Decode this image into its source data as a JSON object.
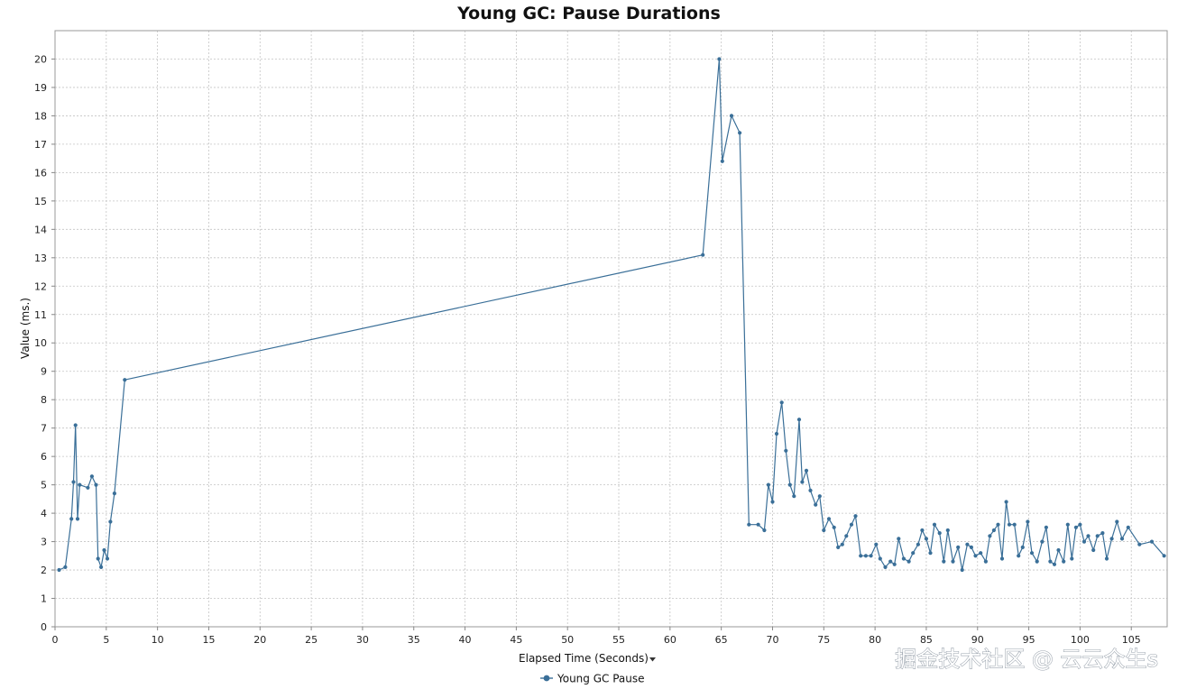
{
  "chart_data": {
    "type": "line",
    "title": "Young GC: Pause Durations",
    "xlabel": "Elapsed Time (Seconds)",
    "xlabel_dropdown_icon": "caret-down-icon",
    "ylabel": "Value (ms.)",
    "xlim": [
      0,
      108.5
    ],
    "ylim": [
      0,
      21
    ],
    "x_ticks": [
      0,
      5,
      10,
      15,
      20,
      25,
      30,
      35,
      40,
      45,
      50,
      55,
      60,
      65,
      70,
      75,
      80,
      85,
      90,
      95,
      100,
      105
    ],
    "y_ticks": [
      0,
      1,
      2,
      3,
      4,
      5,
      6,
      7,
      8,
      9,
      10,
      11,
      12,
      13,
      14,
      15,
      16,
      17,
      18,
      19,
      20
    ],
    "grid": true,
    "legend_position": "bottom-center",
    "series": [
      {
        "name": "Young GC Pause",
        "color": "#3a6f98",
        "marker": "circle",
        "x": [
          0.4,
          1.0,
          1.6,
          1.8,
          2.0,
          2.2,
          2.4,
          3.2,
          3.6,
          4.0,
          4.2,
          4.5,
          4.8,
          5.1,
          5.4,
          5.8,
          6.8,
          63.2,
          64.8,
          65.1,
          66.0,
          66.8,
          67.7,
          68.6,
          69.2,
          69.6,
          70.0,
          70.4,
          70.9,
          71.3,
          71.7,
          72.1,
          72.6,
          72.9,
          73.3,
          73.7,
          74.2,
          74.6,
          75.0,
          75.5,
          76.0,
          76.4,
          76.8,
          77.2,
          77.7,
          78.1,
          78.6,
          79.1,
          79.6,
          80.1,
          80.5,
          81.0,
          81.5,
          81.9,
          82.3,
          82.8,
          83.3,
          83.7,
          84.2,
          84.6,
          85.0,
          85.4,
          85.8,
          86.3,
          86.7,
          87.1,
          87.6,
          88.1,
          88.5,
          89.0,
          89.4,
          89.8,
          90.3,
          90.8,
          91.2,
          91.6,
          92.0,
          92.4,
          92.8,
          93.1,
          93.6,
          94.0,
          94.4,
          94.9,
          95.3,
          95.8,
          96.3,
          96.7,
          97.1,
          97.5,
          97.9,
          98.4,
          98.8,
          99.2,
          99.6,
          100.0,
          100.4,
          100.8,
          101.3,
          101.7,
          102.2,
          102.6,
          103.1,
          103.6,
          104.1,
          104.7,
          105.8,
          107.0,
          108.2
        ],
        "y": [
          2.0,
          2.1,
          3.8,
          5.1,
          7.1,
          3.8,
          5.0,
          4.9,
          5.3,
          5.0,
          2.4,
          2.1,
          2.7,
          2.4,
          3.7,
          4.7,
          8.7,
          13.1,
          20.0,
          16.4,
          18.0,
          17.4,
          3.6,
          3.6,
          3.4,
          5.0,
          4.4,
          6.8,
          7.9,
          6.2,
          5.0,
          4.6,
          7.3,
          5.1,
          5.5,
          4.8,
          4.3,
          4.6,
          3.4,
          3.8,
          3.5,
          2.8,
          2.9,
          3.2,
          3.6,
          3.9,
          2.5,
          2.5,
          2.5,
          2.9,
          2.4,
          2.1,
          2.3,
          2.2,
          3.1,
          2.4,
          2.3,
          2.6,
          2.9,
          3.4,
          3.1,
          2.6,
          3.6,
          3.3,
          2.3,
          3.4,
          2.3,
          2.8,
          2.0,
          2.9,
          2.8,
          2.5,
          2.6,
          2.3,
          3.2,
          3.4,
          3.6,
          2.4,
          4.4,
          3.6,
          3.6,
          2.5,
          2.8,
          3.7,
          2.6,
          2.3,
          3.0,
          3.5,
          2.3,
          2.2,
          2.7,
          2.3,
          3.6,
          2.4,
          3.5,
          3.6,
          3.0,
          3.2,
          2.7,
          3.2,
          3.3,
          2.4,
          3.1,
          3.7,
          3.1,
          3.5,
          2.9,
          3.0,
          2.5
        ]
      }
    ]
  },
  "watermark": "掘金技术社区 @ 云云众生s"
}
